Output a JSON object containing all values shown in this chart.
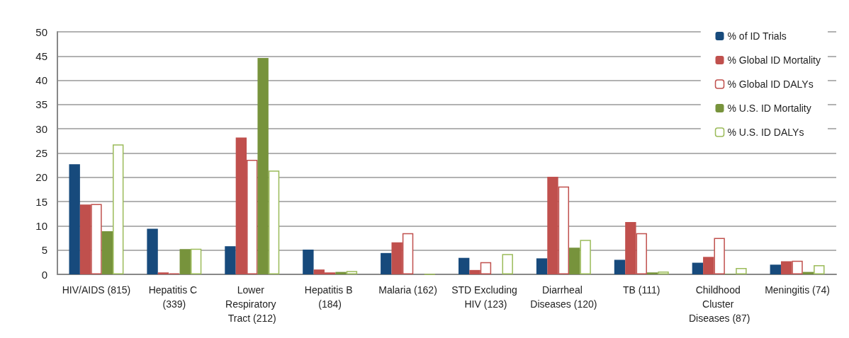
{
  "chart_data": {
    "type": "bar",
    "categories": [
      "HIV/AIDS (815)",
      "Hepatitis C (339)",
      "Lower Respiratory Tract (212)",
      "Hepatitis B (184)",
      "Malaria (162)",
      "STD Excluding HIV (123)",
      "Diarrheal Diseases (120)",
      "TB (111)",
      "Childhood Cluster Diseases (87)",
      "Meningitis (74)"
    ],
    "series": [
      {
        "name": "% of ID Trials",
        "color": "#174a7c",
        "values": [
          22.7,
          9.4,
          5.8,
          5.1,
          4.4,
          3.4,
          3.3,
          3.0,
          2.4,
          2.0
        ]
      },
      {
        "name": "% Global ID Mortality",
        "color": "#c0504d",
        "values": [
          14.4,
          0.4,
          28.2,
          1.0,
          6.6,
          0.9,
          20.1,
          10.8,
          3.6,
          2.7
        ]
      },
      {
        "name": "% Global ID DALYs",
        "color": "#c0504d",
        "line_style": "solid",
        "values": [
          14.5,
          0.2,
          23.6,
          0.4,
          8.5,
          2.5,
          18.1,
          8.5,
          7.5,
          2.8
        ]
      },
      {
        "name": "% U.S. ID Mortality",
        "color": "#77933c",
        "values": [
          8.9,
          5.2,
          44.6,
          0.5,
          0,
          0,
          5.5,
          0.4,
          0.1,
          0.5
        ]
      },
      {
        "name": "% U.S. ID DALYs",
        "color": "#9bbb59",
        "line_style": "solid",
        "values": [
          26.8,
          5.3,
          21.4,
          0.7,
          0,
          4.2,
          7.1,
          0.6,
          1.3,
          1.9
        ]
      }
    ],
    "ylim": [
      0,
      50
    ],
    "yticks": [
      0,
      5,
      10,
      15,
      20,
      25,
      30,
      35,
      40,
      45,
      50
    ],
    "grid": "y",
    "legend": "top right"
  }
}
